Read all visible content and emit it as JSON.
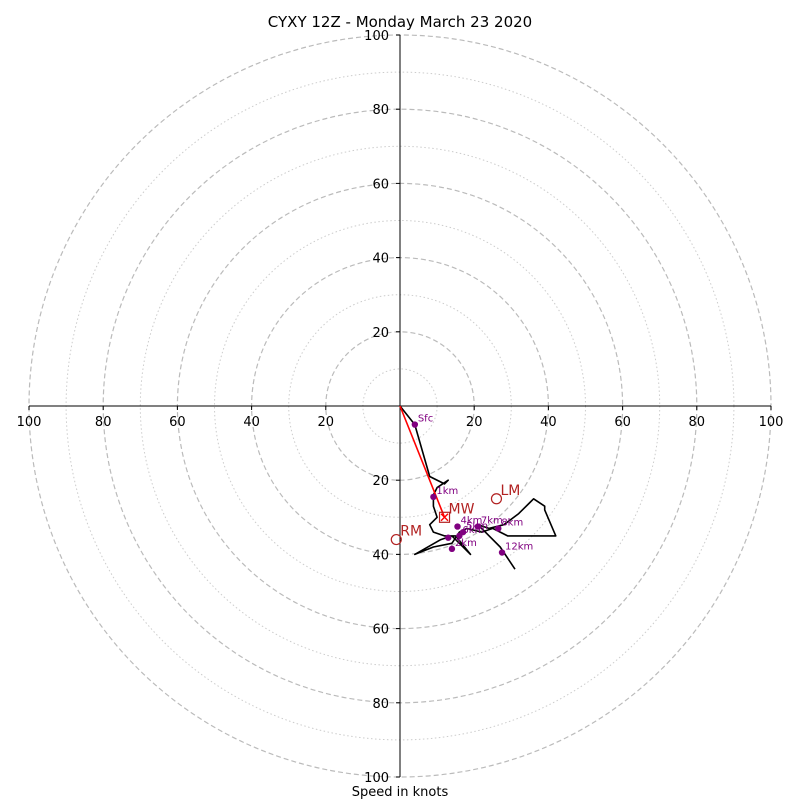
{
  "chart_data": {
    "type": "scatter",
    "title": "CYXY 12Z - Monday March 23 2020",
    "xlabel": "Speed in knots",
    "ylabel": "",
    "xlim": [
      -100,
      100
    ],
    "ylim": [
      -100,
      100
    ],
    "tick_values": [
      20,
      40,
      60,
      80,
      100
    ],
    "grid": true,
    "legend": "none",
    "colors": {
      "hodograph": "#000000",
      "points": "#800080",
      "storm_motion": "#ff0000",
      "markers": "#b22222",
      "grid": "#bbbbbb"
    },
    "hodograph_line": [
      [
        0,
        0
      ],
      [
        4,
        -5
      ],
      [
        8,
        -19
      ],
      [
        12,
        -21
      ],
      [
        13,
        -20
      ],
      [
        10,
        -22
      ],
      [
        9,
        -24
      ],
      [
        9,
        -27
      ],
      [
        10,
        -30
      ],
      [
        8,
        -32
      ],
      [
        9,
        -34
      ],
      [
        12,
        -35
      ],
      [
        15,
        -35
      ],
      [
        19,
        -40
      ],
      [
        16,
        -37
      ],
      [
        14,
        -35
      ],
      [
        11,
        -36
      ],
      [
        4,
        -40
      ],
      [
        9,
        -38
      ],
      [
        14,
        -37
      ],
      [
        16,
        -34
      ],
      [
        18,
        -33
      ],
      [
        22,
        -34
      ],
      [
        25,
        -33
      ],
      [
        29,
        -35
      ],
      [
        35,
        -35
      ],
      [
        42,
        -35
      ],
      [
        39,
        -28
      ],
      [
        39,
        -27
      ],
      [
        36,
        -25
      ],
      [
        35,
        -26
      ],
      [
        32,
        -29
      ],
      [
        28,
        -32
      ],
      [
        24,
        -33
      ],
      [
        21,
        -32
      ],
      [
        23,
        -34
      ],
      [
        27,
        -38
      ],
      [
        31,
        -44
      ]
    ],
    "height_points": [
      {
        "label": "Sfc",
        "u": 4,
        "v": -5
      },
      {
        "label": "1km",
        "u": 9,
        "v": -24.5
      },
      {
        "label": "4km",
        "u": 15.5,
        "v": -32.5
      },
      {
        "label": "5km",
        "u": 17,
        "v": -34
      },
      {
        "label": "6km",
        "u": 16,
        "v": -35
      },
      {
        "label": "",
        "u": 13,
        "v": -35.5
      },
      {
        "label": "2km",
        "u": 14,
        "v": -38.5
      },
      {
        "label": "7km",
        "u": 21,
        "v": -32.5
      },
      {
        "label": "8km",
        "u": 26.5,
        "v": -33
      },
      {
        "label": "12km",
        "u": 27.5,
        "v": -39.5
      }
    ],
    "storm_motion_vector": {
      "from": [
        0,
        0
      ],
      "to": [
        12,
        -30
      ]
    },
    "markers": [
      {
        "label": "MW",
        "symbol": "square",
        "u": 12,
        "v": -30
      },
      {
        "label": "LM",
        "symbol": "circle",
        "u": 26,
        "v": -25
      },
      {
        "label": "RM",
        "symbol": "circle",
        "u": -1,
        "v": -36
      }
    ]
  }
}
